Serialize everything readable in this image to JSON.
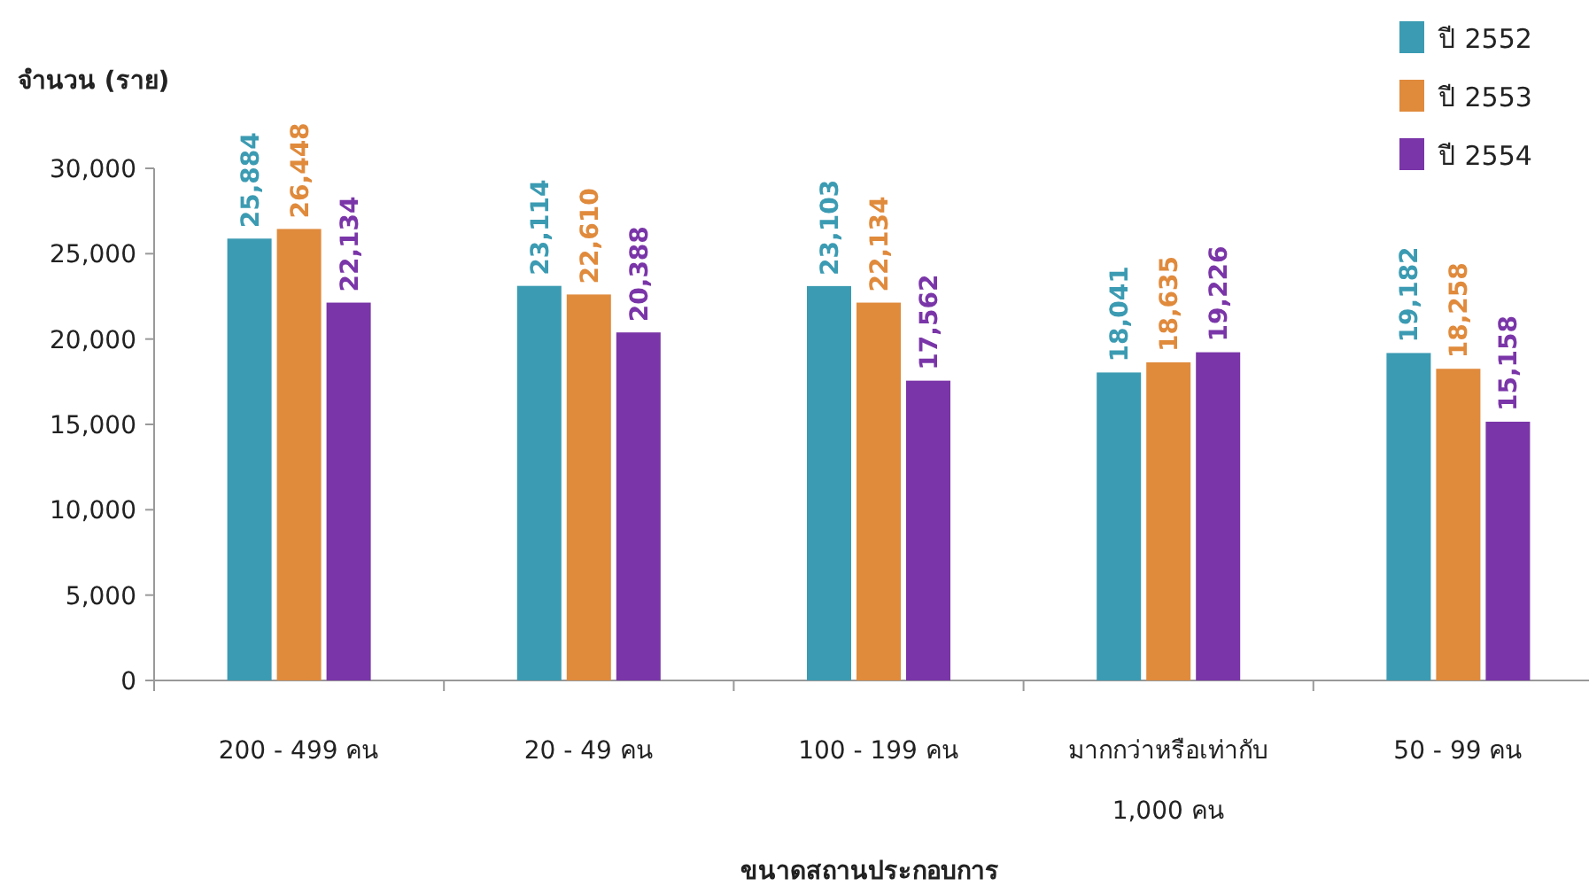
{
  "chart_data": {
    "type": "bar",
    "ylabel": "จำนวน (ราย)",
    "xlabel": "ขนาดสถานประกอบการ",
    "categories": [
      "200 - 499 คน",
      "20 - 49 คน",
      "100 - 199 คน",
      "มากกว่าหรือเท่ากับ\n1,000 คน",
      "50 - 99 คน"
    ],
    "series": [
      {
        "name": "ปี 2552",
        "color": "#3b9bb2",
        "values": [
          25884,
          23114,
          23103,
          18041,
          19182
        ],
        "value_labels": [
          "25,884",
          "23,114",
          "23,103",
          "18,041",
          "19,182"
        ]
      },
      {
        "name": "ปี 2553",
        "color": "#e08a3c",
        "values": [
          26448,
          22610,
          22134,
          18635,
          18258
        ],
        "value_labels": [
          "26,448",
          "22,610",
          "22,134",
          "18,635",
          "18,258"
        ]
      },
      {
        "name": "ปี 2554",
        "color": "#7a35a8",
        "values": [
          22134,
          20388,
          17562,
          19226,
          15158
        ],
        "value_labels": [
          "22,134",
          "20,388",
          "17,562",
          "19,226",
          "15,158"
        ]
      }
    ],
    "ylim": [
      0,
      30000
    ],
    "yticks": [
      {
        "value": 0,
        "label": "0"
      },
      {
        "value": 5000,
        "label": "5,000"
      },
      {
        "value": 10000,
        "label": "10,000"
      },
      {
        "value": 15000,
        "label": "15,000"
      },
      {
        "value": 20000,
        "label": "20,000"
      },
      {
        "value": 25000,
        "label": "25,000"
      },
      {
        "value": 30000,
        "label": "30,000"
      }
    ],
    "grid": false,
    "legend": "top right"
  }
}
